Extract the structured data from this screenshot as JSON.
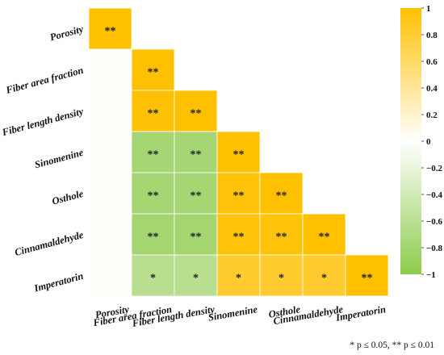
{
  "chart_data": {
    "type": "heatmap",
    "variables": [
      "Porosity",
      "Fiber area fraction",
      "Fiber length density",
      "Sinomenine",
      "Osthole",
      "Cinnamaldehyde",
      "Imperatorin"
    ],
    "matrix": [
      [
        1.0
      ],
      [
        0.02,
        1.0
      ],
      [
        0.02,
        0.98,
        1.0
      ],
      [
        0.02,
        -0.78,
        -0.78,
        1.0
      ],
      [
        0.02,
        -0.78,
        -0.78,
        0.97,
        1.0
      ],
      [
        0.02,
        -0.8,
        -0.8,
        0.96,
        0.96,
        1.0
      ],
      [
        0.02,
        -0.62,
        -0.62,
        0.82,
        0.82,
        0.82,
        1.0
      ]
    ],
    "significance": [
      [
        "**"
      ],
      [
        "",
        "**"
      ],
      [
        "",
        "**",
        "**"
      ],
      [
        "",
        "**",
        "**",
        "**"
      ],
      [
        "",
        "**",
        "**",
        "**",
        "**"
      ],
      [
        "",
        "**",
        "**",
        "**",
        "**",
        "**"
      ],
      [
        "",
        "*",
        "*",
        "*",
        "*",
        "*",
        "**"
      ]
    ],
    "colorbar": {
      "range": [
        -1,
        1
      ],
      "ticks": [
        "1",
        "0.8",
        "0.6",
        "0.4",
        "0.2",
        "0",
        "−0.2",
        "−0.4",
        "−0.6",
        "−0.8",
        "−1"
      ],
      "colors": {
        "high": "#FFC000",
        "mid": "#FFFFFF",
        "low": "#8DCB4C"
      }
    },
    "footnote": "* p ≤ 0.05, ** p ≤ 0.01"
  }
}
